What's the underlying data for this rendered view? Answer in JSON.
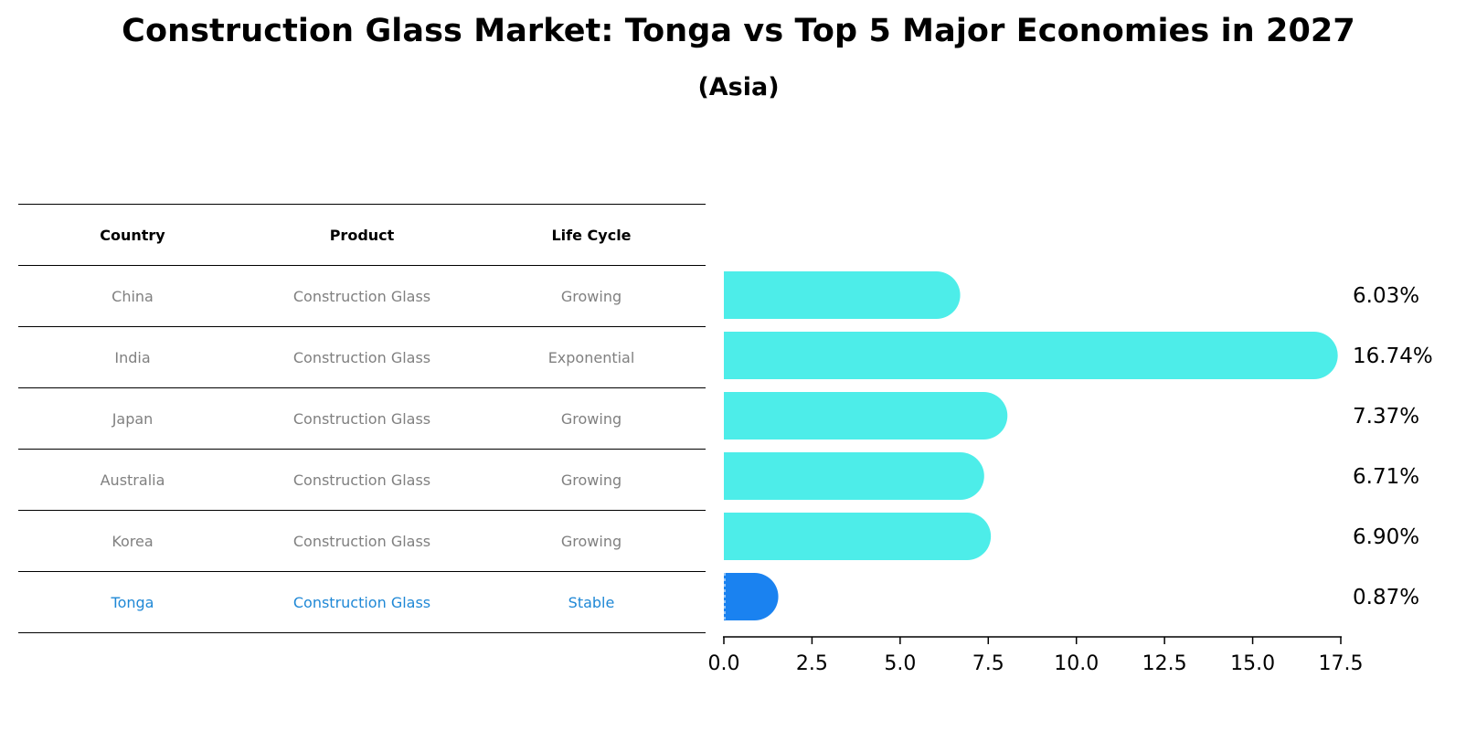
{
  "title": "Construction Glass Market: Tonga vs Top 5 Major Economies in 2027",
  "subtitle": "(Asia)",
  "table": {
    "headers": [
      "Country",
      "Product",
      "Life Cycle"
    ],
    "rows": [
      {
        "country": "China",
        "product": "Construction Glass",
        "life_cycle": "Growing"
      },
      {
        "country": "India",
        "product": "Construction Glass",
        "life_cycle": "Exponential"
      },
      {
        "country": "Japan",
        "product": "Construction Glass",
        "life_cycle": "Growing"
      },
      {
        "country": "Australia",
        "product": "Construction Glass",
        "life_cycle": "Growing"
      },
      {
        "country": "Korea",
        "product": "Construction Glass",
        "life_cycle": "Growing"
      },
      {
        "country": "Tonga",
        "product": "Construction Glass",
        "life_cycle": "Stable"
      }
    ]
  },
  "colors": {
    "bar": "#4dede9",
    "highlight_bar": "#1a82f0",
    "highlight_text": "#1f88d6",
    "muted_text": "#808080"
  },
  "chart_data": {
    "type": "bar",
    "orientation": "horizontal",
    "title": "Construction Glass Market: Tonga vs Top 5 Major Economies in 2027",
    "subtitle": "(Asia)",
    "categories": [
      "China",
      "India",
      "Japan",
      "Australia",
      "Korea",
      "Tonga"
    ],
    "values": [
      6.03,
      16.74,
      7.37,
      6.71,
      6.9,
      0.87
    ],
    "value_labels": [
      "6.03%",
      "16.74%",
      "7.37%",
      "6.71%",
      "6.90%",
      "0.87%"
    ],
    "highlight": "Tonga",
    "xlim": [
      0,
      17.5
    ],
    "xticks": [
      0.0,
      2.5,
      5.0,
      7.5,
      10.0,
      12.5,
      15.0,
      17.5
    ],
    "xtick_labels": [
      "0.0",
      "2.5",
      "5.0",
      "7.5",
      "10.0",
      "12.5",
      "15.0",
      "17.5"
    ],
    "xlabel": "",
    "ylabel": "",
    "grid": false
  }
}
